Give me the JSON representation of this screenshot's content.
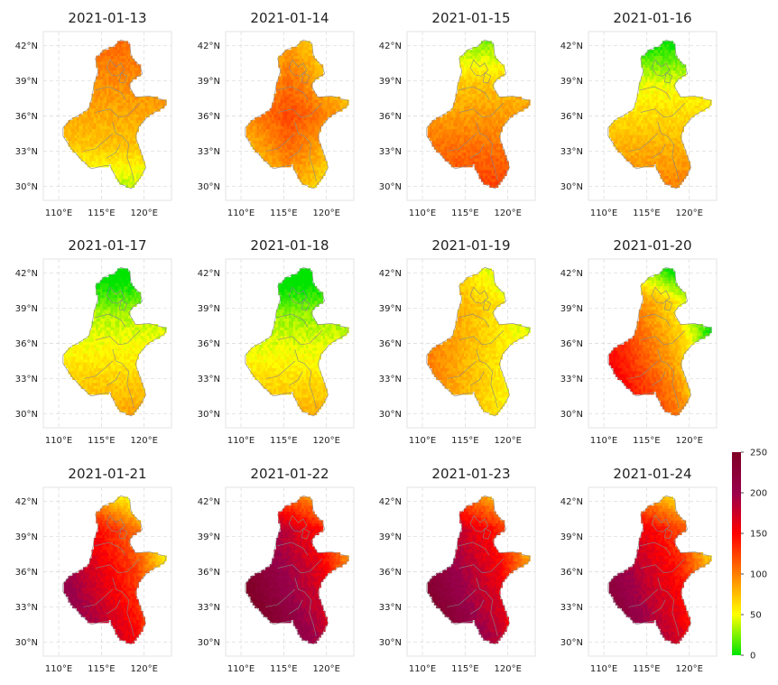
{
  "chart_data": {
    "type": "heatmap",
    "panels": [
      {
        "title": "2021-01-13",
        "level": 75,
        "pattern": "south_green"
      },
      {
        "title": "2021-01-14",
        "level": 95,
        "pattern": "central_hot"
      },
      {
        "title": "2021-01-15",
        "level": 85,
        "pattern": "north_green"
      },
      {
        "title": "2021-01-16",
        "level": 60,
        "pattern": "north_green"
      },
      {
        "title": "2021-01-17",
        "level": 45,
        "pattern": "north_green"
      },
      {
        "title": "2021-01-18",
        "level": 40,
        "pattern": "north_green"
      },
      {
        "title": "2021-01-19",
        "level": 65,
        "pattern": "east_green"
      },
      {
        "title": "2021-01-20",
        "level": 95,
        "pattern": "southwest_hot"
      },
      {
        "title": "2021-01-21",
        "level": 150,
        "pattern": "southwest_hot"
      },
      {
        "title": "2021-01-22",
        "level": 190,
        "pattern": "southwest_hot"
      },
      {
        "title": "2021-01-23",
        "level": 180,
        "pattern": "southwest_hot"
      },
      {
        "title": "2021-01-24",
        "level": 165,
        "pattern": "southwest_hot"
      }
    ],
    "x_ticks": [
      "110°E",
      "115°E",
      "120°E"
    ],
    "x_tick_values": [
      110,
      115,
      120
    ],
    "y_ticks": [
      "42°N",
      "39°N",
      "36°N",
      "33°N",
      "30°N"
    ],
    "y_tick_values": [
      42,
      39,
      36,
      33,
      30
    ],
    "xlim": [
      108.2,
      123.2
    ],
    "ylim": [
      28.8,
      43.2
    ],
    "colorbar": {
      "ticks": [
        "250",
        "200",
        "150",
        "100",
        "50",
        "0"
      ],
      "tick_values": [
        250,
        200,
        150,
        100,
        50,
        0
      ],
      "range": [
        0,
        250
      ],
      "colors": [
        "#00e400",
        "#ffff00",
        "#ff7e00",
        "#ff0000",
        "#99004c",
        "#7e0023"
      ]
    }
  }
}
